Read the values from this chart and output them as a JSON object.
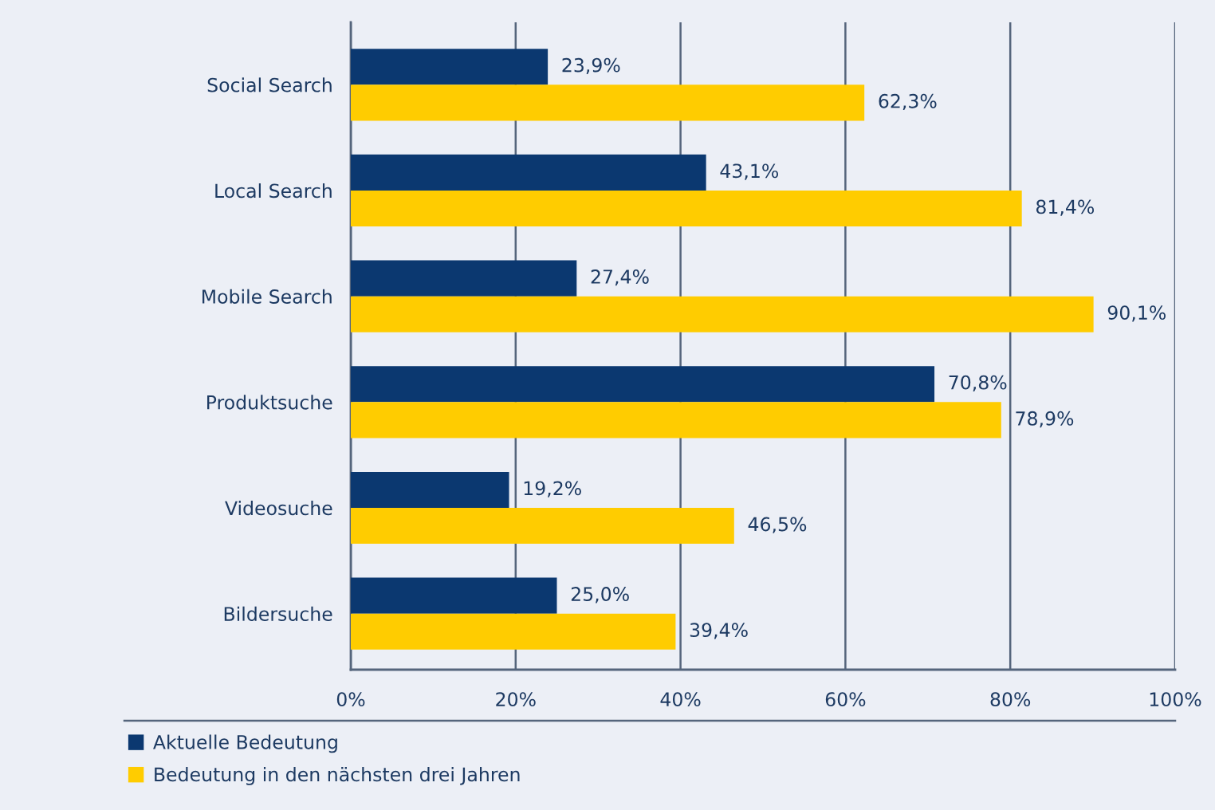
{
  "chart_data": {
    "type": "bar",
    "orientation": "horizontal",
    "categories": [
      "Social Search",
      "Local Search",
      "Mobile Search",
      "Produktsuche",
      "Videosuche",
      "Bildersuche"
    ],
    "series": [
      {
        "name": "Aktuelle Bedeutung",
        "color": "#0b3870",
        "values": [
          23.9,
          43.1,
          27.4,
          70.8,
          19.2,
          25.0
        ],
        "value_labels": [
          "23,9%",
          "43,1%",
          "27,4%",
          "70,8%",
          "19,2%",
          "25,0%"
        ]
      },
      {
        "name": "Bedeutung in den nächsten drei Jahren",
        "color": "#ffcc00",
        "values": [
          62.3,
          81.4,
          90.1,
          78.9,
          46.5,
          39.4
        ],
        "value_labels": [
          "62,3%",
          "81,4%",
          "90,1%",
          "78,9%",
          "46,5%",
          "39,4%"
        ]
      }
    ],
    "xlim": [
      0,
      100
    ],
    "xticks": [
      {
        "value": 0,
        "label": "0%"
      },
      {
        "value": 20,
        "label": "20%"
      },
      {
        "value": 40,
        "label": "40%"
      },
      {
        "value": 60,
        "label": "60%"
      },
      {
        "value": 80,
        "label": "80%"
      },
      {
        "value": 100,
        "label": "100%"
      }
    ],
    "grid": "x",
    "legend": "bottom left"
  }
}
